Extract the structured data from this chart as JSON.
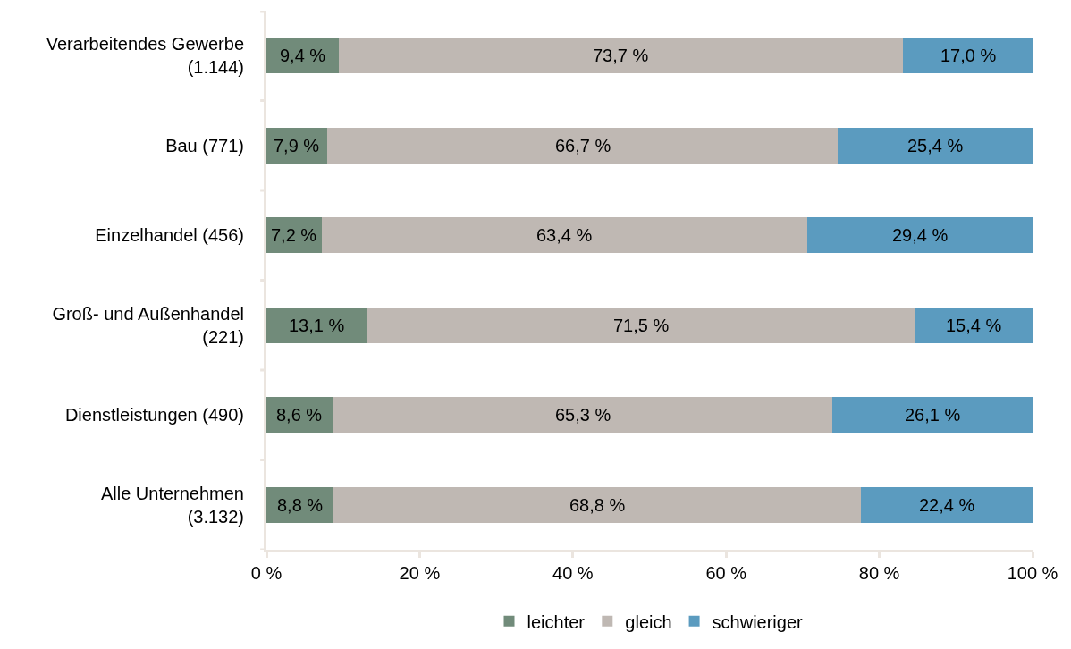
{
  "chart_data": {
    "type": "bar",
    "orientation": "horizontal",
    "stacked": true,
    "legend": "bottom",
    "grid": false,
    "categories": [
      "Verarbeitendes Gewerbe (1.144)",
      "Bau (771)",
      "Einzelhandel (456)",
      "Groß- und Außenhandel (221)",
      "Dienstleistungen (490)",
      "Alle Unternehmen (3.132)"
    ],
    "series": [
      {
        "name": "leichter",
        "color": "#718b7a",
        "values": [
          9.4,
          7.9,
          7.2,
          13.1,
          8.6,
          8.8
        ],
        "value_labels": [
          "9,4 %",
          "7,9 %",
          "7,2 %",
          "13,1 %",
          "8,6 %",
          "8,8 %"
        ]
      },
      {
        "name": "gleich",
        "color": "#bfb8b3",
        "values": [
          73.7,
          66.7,
          63.4,
          71.5,
          65.3,
          68.8
        ],
        "value_labels": [
          "73,7 %",
          "66,7 %",
          "63,4 %",
          "71,5 %",
          "65,3 %",
          "68,8 %"
        ]
      },
      {
        "name": "schwieriger",
        "color": "#5b9bbf",
        "values": [
          17.0,
          25.4,
          29.4,
          15.4,
          26.1,
          22.4
        ],
        "value_labels": [
          "17,0 %",
          "25,4 %",
          "29,4 %",
          "15,4 %",
          "26,1 %",
          "22,4 %"
        ]
      }
    ],
    "xlim": [
      0,
      100
    ],
    "xticks": [
      {
        "value": 0,
        "label": "0 %"
      },
      {
        "value": 20,
        "label": "20 %"
      },
      {
        "value": 40,
        "label": "40 %"
      },
      {
        "value": 60,
        "label": "60 %"
      },
      {
        "value": 80,
        "label": "80 %"
      },
      {
        "value": 100,
        "label": "100 %"
      }
    ]
  }
}
